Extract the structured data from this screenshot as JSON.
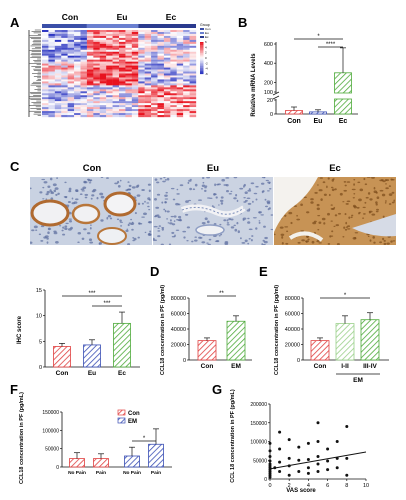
{
  "panels": [
    {
      "letter": "A",
      "kind": "heatmap",
      "groups": [
        "Con",
        "Eu",
        "Ec"
      ],
      "group_colors": [
        "#3a4fa8",
        "#6a7fd0",
        "#2a3a8e"
      ],
      "legend_title": "Group",
      "legend_entries": [
        "Con",
        "Eu",
        "Ec"
      ],
      "scale_labels": [
        "6",
        "4",
        "2",
        "0",
        "-2",
        "-4",
        "-6"
      ],
      "high_color": "#e8121e",
      "low_color": "#2c36c2",
      "mid_color": "#ffffff"
    },
    {
      "letter": "B",
      "kind": "bar",
      "ylabel": "Relative mRNA Levels",
      "categories": [
        "Con",
        "Eu",
        "Ec"
      ],
      "values": [
        5,
        3,
        300
      ],
      "errors": [
        5,
        3,
        260
      ],
      "upper_ticks": [
        "600",
        "400",
        "200",
        "100"
      ],
      "lower_ticks": [
        "20",
        "0"
      ],
      "colors": [
        "#e04040",
        "#3a4fb5",
        "#4eaa3a"
      ],
      "sig": [
        {
          "from": 0,
          "to": 2,
          "label": "*"
        },
        {
          "from": 1,
          "to": 2,
          "label": "****"
        }
      ]
    },
    {
      "letter": "C",
      "kind": "ihc-images",
      "labels": [
        "Con",
        "Eu",
        "Ec"
      ]
    },
    {
      "letter": "",
      "kind": "bar",
      "ylabel": "IHC score",
      "categories": [
        "Con",
        "Eu",
        "Ec"
      ],
      "values": [
        4,
        4.3,
        8.5
      ],
      "errors": [
        0.6,
        1.0,
        2.2
      ],
      "ylim": [
        0,
        15
      ],
      "ticks": [
        0,
        5,
        10,
        15
      ],
      "colors": [
        "#e04040",
        "#3a4fb5",
        "#4eaa3a"
      ],
      "sig": [
        {
          "from": 0,
          "to": 2,
          "label": "***"
        },
        {
          "from": 1,
          "to": 2,
          "label": "***"
        }
      ]
    },
    {
      "letter": "D",
      "kind": "bar",
      "ylabel": "CCL18 concentration in PF (pg/ml)",
      "categories": [
        "Con",
        "EM"
      ],
      "values": [
        25000,
        50000
      ],
      "errors": [
        3500,
        7000
      ],
      "ylim": [
        0,
        80000
      ],
      "ticks": [
        0,
        20000,
        40000,
        60000,
        80000
      ],
      "colors": [
        "#e04040",
        "#4eaa3a"
      ],
      "sig": [
        {
          "from": 0,
          "to": 1,
          "label": "**"
        }
      ]
    },
    {
      "letter": "E",
      "kind": "bar",
      "ylabel": "CCL18 concentration in PF (pg/ml)",
      "categories": [
        "Con",
        "I-II",
        "III-IV"
      ],
      "values": [
        25000,
        47000,
        52000
      ],
      "errors": [
        3500,
        10000,
        9000
      ],
      "ylim": [
        0,
        80000
      ],
      "ticks": [
        0,
        20000,
        40000,
        60000,
        80000
      ],
      "colors": [
        "#e04040",
        "#9ad08a",
        "#4eaa3a"
      ],
      "group_label": "EM",
      "sig": [
        {
          "from": 0,
          "to": 2,
          "label": "*"
        }
      ]
    },
    {
      "letter": "F",
      "kind": "grouped-bar",
      "ylabel": "CCL18 concentration in PF (pg/mL)",
      "categories": [
        "No Pain",
        "Pain",
        "No Pain",
        "Pain"
      ],
      "values": [
        23000,
        23000,
        30000,
        62000
      ],
      "errors": [
        16000,
        13000,
        24000,
        42000
      ],
      "ylim": [
        0,
        150000
      ],
      "ticks": [
        0,
        50000,
        100000,
        150000
      ],
      "tick_labels": [
        "0",
        "50000",
        "100000",
        "150000"
      ],
      "colors": [
        "#e04040",
        "#e04040",
        "#3a4fb5",
        "#3a4fb5"
      ],
      "legend": [
        {
          "name": "Con",
          "color": "#e04040"
        },
        {
          "name": "EM",
          "color": "#3a4fb5"
        }
      ],
      "sig": [
        {
          "from": 2,
          "to": 3,
          "label": "*"
        }
      ]
    },
    {
      "letter": "G",
      "kind": "scatter",
      "ylabel": "CCL 18 concentration in PF (pg/mL)",
      "xlabel": "VAS score",
      "xlim": [
        0,
        10
      ],
      "ylim": [
        0,
        200000
      ],
      "xticks": [
        0,
        2,
        4,
        6,
        8,
        10
      ],
      "yticks": [
        0,
        50000,
        100000,
        150000,
        200000
      ],
      "trend": [
        [
          0,
          27000
        ],
        [
          10,
          72000
        ]
      ]
    }
  ],
  "chart_data": [
    {
      "type": "bar",
      "ylabel": "Relative mRNA Levels",
      "categories": [
        "Con",
        "Eu",
        "Ec"
      ],
      "values": [
        5,
        3,
        300
      ]
    },
    {
      "type": "bar",
      "ylabel": "IHC score",
      "categories": [
        "Con",
        "Eu",
        "Ec"
      ],
      "values": [
        4,
        4.3,
        8.5
      ],
      "ylim": [
        0,
        15
      ]
    },
    {
      "type": "bar",
      "ylabel": "CCL18 concentration in PF (pg/ml)",
      "categories": [
        "Con",
        "EM"
      ],
      "values": [
        25000,
        50000
      ],
      "ylim": [
        0,
        80000
      ]
    },
    {
      "type": "bar",
      "ylabel": "CCL18 concentration in PF (pg/ml)",
      "categories": [
        "Con",
        "I-II",
        "III-IV"
      ],
      "values": [
        25000,
        47000,
        52000
      ],
      "ylim": [
        0,
        80000
      ]
    },
    {
      "type": "bar",
      "ylabel": "CCL18 concentration in PF (pg/mL)",
      "categories": [
        "No Pain",
        "Pain"
      ],
      "series": [
        {
          "name": "Con",
          "values": [
            23000,
            23000
          ]
        },
        {
          "name": "EM",
          "values": [
            30000,
            62000
          ]
        }
      ],
      "ylim": [
        0,
        150000
      ]
    },
    {
      "type": "scatter",
      "xlabel": "VAS score",
      "ylabel": "CCL 18 concentration in PF (pg/mL)",
      "xlim": [
        0,
        10
      ],
      "ylim": [
        0,
        200000
      ],
      "points": [
        [
          0,
          5000
        ],
        [
          0,
          10000
        ],
        [
          0,
          15000
        ],
        [
          0,
          20000
        ],
        [
          0,
          25000
        ],
        [
          0,
          30000
        ],
        [
          0,
          35000
        ],
        [
          0,
          40000
        ],
        [
          0,
          48000
        ],
        [
          0,
          60000
        ],
        [
          0,
          75000
        ],
        [
          0,
          95000
        ],
        [
          0.5,
          30000
        ],
        [
          1,
          20000
        ],
        [
          1,
          45000
        ],
        [
          1,
          80000
        ],
        [
          1,
          125000
        ],
        [
          2,
          10000
        ],
        [
          2,
          35000
        ],
        [
          2,
          55000
        ],
        [
          2,
          105000
        ],
        [
          3,
          20000
        ],
        [
          3,
          50000
        ],
        [
          3,
          85000
        ],
        [
          4,
          15000
        ],
        [
          4,
          30000
        ],
        [
          4,
          52000
        ],
        [
          4,
          95000
        ],
        [
          5,
          20000
        ],
        [
          5,
          40000
        ],
        [
          5,
          60000
        ],
        [
          5,
          100000
        ],
        [
          5,
          150000
        ],
        [
          6,
          25000
        ],
        [
          6,
          48000
        ],
        [
          6,
          80000
        ],
        [
          7,
          30000
        ],
        [
          7,
          55000
        ],
        [
          7,
          100000
        ],
        [
          8,
          10000
        ],
        [
          8,
          55000
        ],
        [
          8,
          140000
        ]
      ]
    }
  ]
}
